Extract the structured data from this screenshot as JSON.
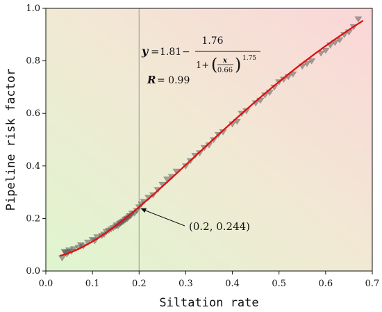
{
  "chart_data": {
    "type": "scatter",
    "xlabel": "Siltation rate",
    "ylabel": "Pipeline risk factor",
    "xlim": [
      0.0,
      0.7
    ],
    "ylim": [
      0.0,
      1.0
    ],
    "xticks": [
      "0.0",
      "0.1",
      "0.2",
      "0.3",
      "0.4",
      "0.5",
      "0.6",
      "0.7"
    ],
    "yticks": [
      "0.0",
      "0.2",
      "0.4",
      "0.6",
      "0.8",
      "1.0"
    ],
    "grid": false,
    "background": "gradient green (lower-left) to pink (upper-right)",
    "marker": "downward triangle, semi-transparent gray",
    "colors": {
      "fit_line": "#e01010",
      "marker": "#606060",
      "reference_line": "#9aaa9a"
    },
    "reference_line_x": 0.2,
    "equation": {
      "lhs": "y",
      "eq": "=",
      "const": "1.81",
      "minus": "−",
      "numerator": "1.76",
      "den_one": "1+",
      "frac_num": "x",
      "frac_den": "0.66",
      "exponent": "1.75"
    },
    "r_text": {
      "label": "R",
      "value": "= 0.99"
    },
    "annotation": {
      "text": "(0.2, 0.244)",
      "x": 0.2,
      "y": 0.244
    },
    "fit": {
      "a": 1.81,
      "b": 1.76,
      "c": 0.66,
      "p": 1.75,
      "x_range": [
        0.03,
        0.68
      ]
    },
    "series": [
      {
        "x": [
          0.035,
          0.04,
          0.042,
          0.045,
          0.048,
          0.05,
          0.055,
          0.06,
          0.07,
          0.075,
          0.08,
          0.09,
          0.1,
          0.105,
          0.11,
          0.12,
          0.125,
          0.13,
          0.135,
          0.14,
          0.145,
          0.15,
          0.152,
          0.155,
          0.158,
          0.16,
          0.162,
          0.165,
          0.167,
          0.17,
          0.172,
          0.175,
          0.177,
          0.18,
          0.182,
          0.185,
          0.19,
          0.195,
          0.2,
          0.205,
          0.21,
          0.22,
          0.23,
          0.24,
          0.25,
          0.26,
          0.27,
          0.28,
          0.3,
          0.31,
          0.32,
          0.33,
          0.34,
          0.35,
          0.36,
          0.37,
          0.38,
          0.4,
          0.41,
          0.42,
          0.43,
          0.45,
          0.46,
          0.47,
          0.48,
          0.49,
          0.5,
          0.51,
          0.52,
          0.53,
          0.55,
          0.56,
          0.57,
          0.59,
          0.6,
          0.61,
          0.62,
          0.63,
          0.64,
          0.65,
          0.66,
          0.67
        ],
        "y": [
          0.05,
          0.075,
          0.07,
          0.065,
          0.072,
          0.08,
          0.075,
          0.085,
          0.09,
          0.1,
          0.095,
          0.11,
          0.12,
          0.115,
          0.13,
          0.135,
          0.14,
          0.15,
          0.155,
          0.16,
          0.165,
          0.17,
          0.175,
          0.172,
          0.18,
          0.182,
          0.185,
          0.188,
          0.19,
          0.195,
          0.198,
          0.2,
          0.205,
          0.21,
          0.21,
          0.22,
          0.22,
          0.23,
          0.244,
          0.255,
          0.265,
          0.28,
          0.29,
          0.31,
          0.33,
          0.35,
          0.36,
          0.38,
          0.4,
          0.42,
          0.44,
          0.45,
          0.47,
          0.48,
          0.5,
          0.52,
          0.53,
          0.56,
          0.57,
          0.6,
          0.61,
          0.64,
          0.65,
          0.67,
          0.68,
          0.7,
          0.72,
          0.73,
          0.74,
          0.75,
          0.78,
          0.79,
          0.8,
          0.83,
          0.84,
          0.86,
          0.87,
          0.88,
          0.9,
          0.91,
          0.93,
          0.96
        ]
      }
    ]
  }
}
